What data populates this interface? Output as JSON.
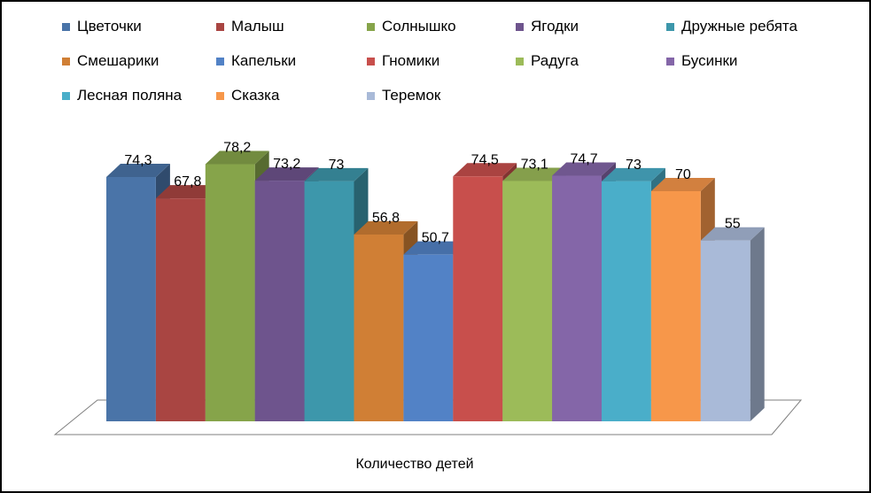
{
  "chart_data": {
    "type": "bar",
    "categories": [
      "Количество детей"
    ],
    "series": [
      {
        "name": "Цветочки",
        "value": 74.3,
        "label": "74,3",
        "color": "#4a74a8"
      },
      {
        "name": "Малыш",
        "value": 67.8,
        "label": "67,8",
        "color": "#a94542"
      },
      {
        "name": "Солнышко",
        "value": 78.2,
        "label": "78,2",
        "color": "#86a44a"
      },
      {
        "name": "Ягодки",
        "value": 73.2,
        "label": "73,2",
        "color": "#6e548d"
      },
      {
        "name": "Дружные ребята",
        "value": 73,
        "label": "73",
        "color": "#3d97ab"
      },
      {
        "name": "Смешарики",
        "value": 56.8,
        "label": "56,8",
        "color": "#d07f35"
      },
      {
        "name": "Капельки",
        "value": 50.7,
        "label": "50,7",
        "color": "#5282c6"
      },
      {
        "name": "Гномики",
        "value": 74.5,
        "label": "74,5",
        "color": "#c84f4c"
      },
      {
        "name": "Радуга",
        "value": 73.1,
        "label": "73,1",
        "color": "#9cbb59"
      },
      {
        "name": "Бусинки",
        "value": 74.7,
        "label": "74,7",
        "color": "#8466a8"
      },
      {
        "name": "Лесная поляна",
        "value": 73,
        "label": "73",
        "color": "#4aaec9"
      },
      {
        "name": "Сказка",
        "value": 70,
        "label": "70",
        "color": "#f7974a"
      },
      {
        "name": "Теремок",
        "value": 55,
        "label": "55",
        "color": "#a9bad8"
      }
    ],
    "ylim": [
      0,
      80
    ],
    "grid": false,
    "legend_position": "top"
  }
}
